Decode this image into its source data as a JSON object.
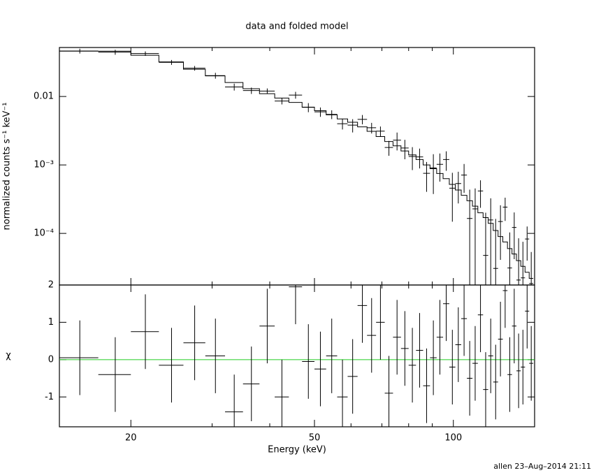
{
  "footer": "allen 23–Aug–2014 21:11",
  "chart_data": [
    {
      "type": "line",
      "title": "data and folded model",
      "ylabel": "normalized counts s⁻¹ keV⁻¹",
      "xscale": "log",
      "yscale": "log",
      "xlim": [
        14,
        150
      ],
      "ylim": [
        1.76e-05,
        0.052
      ],
      "xticks": [
        20,
        50,
        100
      ],
      "xminor_ticks": [
        30,
        40,
        60,
        70,
        80,
        90
      ],
      "yticks": [
        0.01,
        {
          "value": 0.001,
          "label": "10⁻³"
        },
        {
          "value": 0.0001,
          "label": "10⁻⁴"
        }
      ],
      "bin_halfwidth": 1.5,
      "x": [
        15.5,
        18.5,
        21.5,
        24.5,
        27.5,
        30.5,
        33.5,
        36.5,
        39.5,
        42.5,
        45.5,
        48.5,
        51.5,
        54.5,
        57.5,
        60.5,
        63.5,
        66.5,
        69.5,
        72.5,
        75.5,
        78.5,
        81.5,
        84.5,
        87.5,
        90.5,
        93.5,
        96.5,
        99.5,
        102.5,
        105.5,
        108.5,
        111.5,
        114.5,
        117.5,
        120.5,
        123.5,
        126.5,
        129.5,
        132.5,
        135.5,
        138.5,
        141.5,
        144.5,
        147.5
      ],
      "data": {
        "color": "#000000",
        "values": [
          0.0462,
          0.0445,
          0.0424,
          0.0316,
          0.0259,
          0.0202,
          0.0138,
          0.0122,
          0.012,
          0.0086,
          0.0105,
          0.00695,
          0.00597,
          0.00548,
          0.004,
          0.00382,
          0.00464,
          0.0035,
          0.00312,
          0.0018,
          0.0023,
          0.00177,
          0.00133,
          0.00131,
          0.000755,
          0.000906,
          0.00102,
          0.0012,
          0.000458,
          0.000534,
          0.000712,
          0.000165,
          0.000228,
          0.000416,
          4.76e-05,
          0.000157,
          3.08e-05,
          0.000149,
          0.000242,
          3.12e-05,
          0.000122,
          2.08e-05,
          2.24e-05,
          8.29e-05,
          1.85e-05
        ],
        "errors": [
          0.0037,
          0.0037,
          0.0032,
          0.0026,
          0.002,
          0.002,
          0.0016,
          0.0013,
          0.0011,
          0.00095,
          0.0012,
          0.00105,
          0.00093,
          0.00081,
          0.0007,
          0.00084,
          0.00072,
          0.00062,
          0.00052,
          0.00044,
          0.00067,
          0.00056,
          0.00049,
          0.00042,
          0.00035,
          0.00053,
          0.00045,
          0.00038,
          0.00031,
          0.00026,
          0.00032,
          0.00027,
          0.000225,
          0.00018,
          0.000153,
          0.000168,
          0.000132,
          0.000108,
          9e-05,
          7.2e-05,
          8e-05,
          6.4e-05,
          5.3e-05,
          4.3e-05,
          3.5e-05
        ]
      },
      "model": {
        "color": "#000000",
        "values": [
          0.046,
          0.046,
          0.04,
          0.032,
          0.025,
          0.02,
          0.016,
          0.013,
          0.011,
          0.0095,
          0.0082,
          0.007,
          0.0062,
          0.0054,
          0.0047,
          0.0042,
          0.0036,
          0.0031,
          0.0026,
          0.0022,
          0.0019,
          0.0016,
          0.0014,
          0.0012,
          0.001,
          0.00088,
          0.00075,
          0.00063,
          0.00052,
          0.00043,
          0.00036,
          0.0003,
          0.00025,
          0.0002,
          0.00017,
          0.00014,
          0.00011,
          9e-05,
          7.5e-05,
          6e-05,
          5e-05,
          4e-05,
          3.3e-05,
          2.7e-05,
          2.2e-05
        ]
      }
    },
    {
      "type": "scatter",
      "xlabel": "Energy (keV)",
      "ylabel": "χ",
      "xscale": "log",
      "xlim": [
        14,
        150
      ],
      "ylim": [
        -1.8,
        2
      ],
      "xticks": [
        20,
        50,
        100
      ],
      "xminor_ticks": [
        30,
        40,
        60,
        70,
        80,
        90
      ],
      "yticks": [
        -1,
        0,
        1,
        2
      ],
      "bin_halfwidth": 1.5,
      "zero_line_color": "#22cc22",
      "x": [
        15.5,
        18.5,
        21.5,
        24.5,
        27.5,
        30.5,
        33.5,
        36.5,
        39.5,
        42.5,
        45.5,
        48.5,
        51.5,
        54.5,
        57.5,
        60.5,
        63.5,
        66.5,
        69.5,
        72.5,
        75.5,
        78.5,
        81.5,
        84.5,
        87.5,
        90.5,
        93.5,
        96.5,
        99.5,
        102.5,
        105.5,
        108.5,
        111.5,
        114.5,
        117.5,
        120.5,
        123.5,
        126.5,
        129.5,
        132.5,
        135.5,
        138.5,
        141.5,
        144.5,
        147.5
      ],
      "values": [
        0.05,
        -0.4,
        0.75,
        -0.15,
        0.45,
        0.1,
        -1.4,
        -0.65,
        0.9,
        -1.0,
        1.95,
        -0.05,
        -0.25,
        0.1,
        -1.0,
        -0.45,
        1.45,
        0.65,
        1.0,
        -0.9,
        0.6,
        0.3,
        -0.15,
        0.25,
        -0.7,
        0.05,
        0.6,
        1.5,
        -0.2,
        0.4,
        1.1,
        -0.5,
        -0.1,
        1.2,
        -0.8,
        0.1,
        -0.6,
        0.55,
        1.85,
        -0.4,
        0.9,
        -0.3,
        -0.2,
        1.3,
        -0.1
      ],
      "errors": [
        1,
        1,
        1,
        1,
        1,
        1,
        1,
        1,
        1,
        1,
        1,
        1,
        1,
        1,
        1,
        1,
        1,
        1,
        1,
        1,
        1,
        1,
        1,
        1,
        1,
        1,
        1,
        1,
        1,
        1,
        1,
        1,
        1,
        1,
        1,
        1,
        1,
        1,
        1,
        1,
        1,
        1,
        1,
        1,
        1
      ]
    }
  ]
}
